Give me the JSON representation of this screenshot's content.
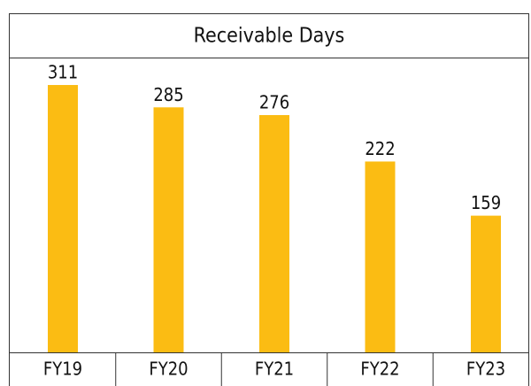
{
  "chart_data": {
    "type": "bar",
    "title": "Receivable Days",
    "categories": [
      "FY19",
      "FY20",
      "FY21",
      "FY22",
      "FY23"
    ],
    "values": [
      311,
      285,
      276,
      222,
      159
    ],
    "color": "#fbbc13"
  }
}
